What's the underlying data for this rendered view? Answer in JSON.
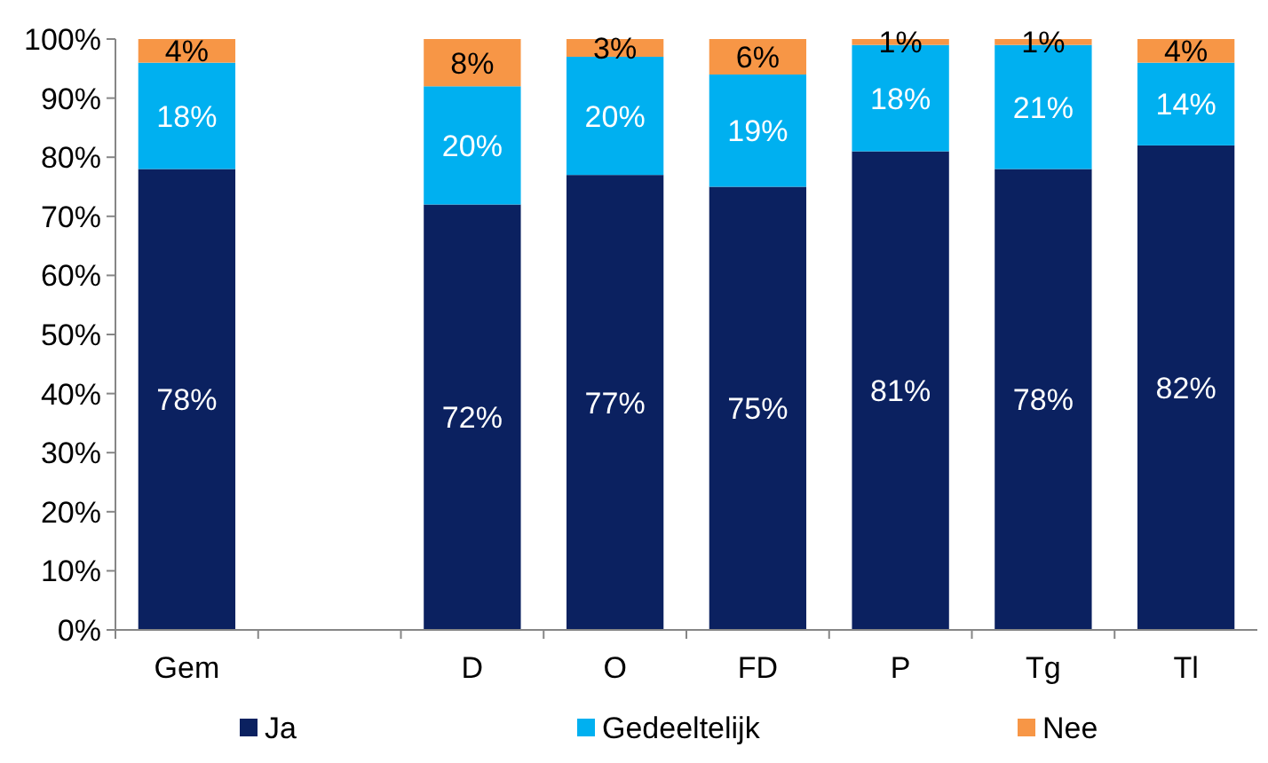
{
  "chart_data": {
    "type": "bar",
    "stacked": true,
    "categories": [
      "Gem",
      null,
      "D",
      "O",
      "FD",
      "P",
      "Tg",
      "Tl"
    ],
    "series": [
      {
        "name": "Ja",
        "color": "#0b2160",
        "values": [
          78,
          null,
          72,
          77,
          75,
          81,
          78,
          82
        ],
        "value_labels": [
          "78%",
          null,
          "72%",
          "77%",
          "75%",
          "81%",
          "78%",
          "82%"
        ]
      },
      {
        "name": "Gedeeltelijk",
        "color": "#00b0f0",
        "values": [
          18,
          null,
          20,
          20,
          19,
          18,
          21,
          14
        ],
        "value_labels": [
          "18%",
          null,
          "20%",
          "20%",
          "19%",
          "18%",
          "21%",
          "14%"
        ]
      },
      {
        "name": "Nee",
        "color": "#f79646",
        "values": [
          4,
          null,
          8,
          3,
          6,
          1,
          1,
          4
        ],
        "value_labels": [
          "4%",
          null,
          "8%",
          "3%",
          "6%",
          "1%",
          "1%",
          "4%"
        ]
      }
    ],
    "ylim": [
      0,
      100
    ],
    "yticks": [
      {
        "value": 0,
        "label": "0%"
      },
      {
        "value": 10,
        "label": "10%"
      },
      {
        "value": 20,
        "label": "20%"
      },
      {
        "value": 30,
        "label": "30%"
      },
      {
        "value": 40,
        "label": "40%"
      },
      {
        "value": 50,
        "label": "50%"
      },
      {
        "value": 60,
        "label": "60%"
      },
      {
        "value": 70,
        "label": "70%"
      },
      {
        "value": 80,
        "label": "80%"
      },
      {
        "value": 90,
        "label": "90%"
      },
      {
        "value": 100,
        "label": "100%"
      }
    ],
    "legend": "bottom",
    "grid": false
  }
}
